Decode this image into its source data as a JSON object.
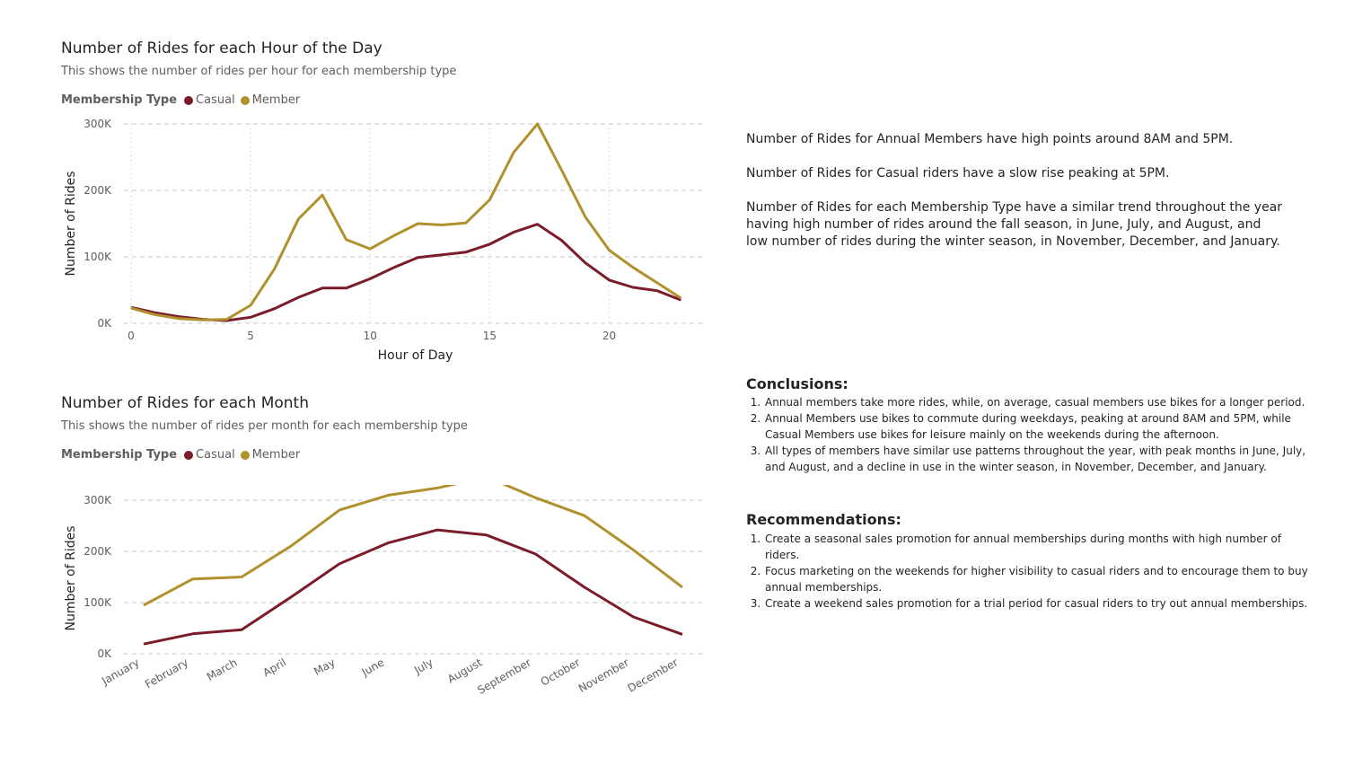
{
  "colors": {
    "casual": "#7b1c2a",
    "member": "#b0912d",
    "grid": "#c8c6c4",
    "axis_text": "#605e5c"
  },
  "hourly": {
    "title": "Number of Rides for each Hour of the Day",
    "subtitle": "This shows the number of rides per hour for each membership type",
    "legend_title": "Membership Type",
    "legend_casual": "Casual",
    "legend_member": "Member"
  },
  "monthly": {
    "title": "Number of Rides for each Month",
    "subtitle": "This shows the number of rides per month for each membership type",
    "legend_title": "Membership Type",
    "legend_casual": "Casual",
    "legend_member": "Member"
  },
  "chart_data": [
    {
      "type": "line",
      "title": "Number of Rides for each Hour of the Day",
      "xlabel": "Hour of Day",
      "ylabel": "Number of Rides",
      "x": [
        0,
        1,
        2,
        3,
        4,
        5,
        6,
        7,
        8,
        9,
        10,
        11,
        12,
        13,
        14,
        15,
        16,
        17,
        18,
        19,
        20,
        21,
        22,
        23
      ],
      "xticks": [
        0,
        5,
        10,
        15,
        20
      ],
      "xtick_labels": [
        "0",
        "5",
        "10",
        "15",
        "20"
      ],
      "xlim": [
        0,
        24
      ],
      "ylim": [
        0,
        300000
      ],
      "yticks": [
        0,
        100000,
        200000,
        300000
      ],
      "ytick_labels": [
        "0K",
        "100K",
        "200K",
        "300K"
      ],
      "grid": true,
      "series": [
        {
          "name": "Casual",
          "values": [
            24000,
            16000,
            10000,
            6000,
            4000,
            9000,
            22000,
            39000,
            53000,
            53000,
            67000,
            84000,
            99000,
            103000,
            107000,
            119000,
            137000,
            149000,
            125000,
            91000,
            65000,
            54000,
            49000,
            35000
          ]
        },
        {
          "name": "Member",
          "values": [
            23000,
            13000,
            7000,
            5000,
            6000,
            27000,
            82000,
            157000,
            193000,
            126000,
            112000,
            132000,
            150000,
            148000,
            151000,
            186000,
            257000,
            300000,
            231000,
            160000,
            110000,
            84000,
            61000,
            38000
          ]
        }
      ]
    },
    {
      "type": "line",
      "title": "Number of Rides for each Month",
      "xlabel": "",
      "ylabel": "Number of Rides",
      "categories": [
        "January",
        "February",
        "March",
        "April",
        "May",
        "June",
        "July",
        "August",
        "September",
        "October",
        "November",
        "December"
      ],
      "ylim": [
        0,
        330000
      ],
      "yticks": [
        0,
        100000,
        200000,
        300000
      ],
      "ytick_labels": [
        "0K",
        "100K",
        "200K",
        "300K"
      ],
      "grid": true,
      "series": [
        {
          "name": "Casual",
          "values": [
            19000,
            39000,
            47000,
            110000,
            176000,
            217000,
            242000,
            232000,
            195000,
            130000,
            72000,
            38000
          ]
        },
        {
          "name": "Member",
          "values": [
            95000,
            146000,
            150000,
            210000,
            281000,
            310000,
            324000,
            346000,
            305000,
            270000,
            203000,
            130000
          ]
        }
      ]
    }
  ],
  "notes": {
    "p1": "Number of Rides for Annual Members have high points around 8AM and 5PM.",
    "p2": "Number of Rides for Casual riders have a slow rise peaking at 5PM.",
    "p3": "Number of Rides for each Membership Type have a similar trend throughout the year having high number of rides around the fall season, in June, July, and August, and low number of rides during the winter season, in November, December, and January."
  },
  "conclusions": {
    "heading": "Conclusions:",
    "items": [
      "Annual members take more rides, while, on average, casual members use bikes for a longer period.",
      "Annual Members use bikes to commute during weekdays, peaking at around 8AM and 5PM, while Casual Members use bikes for leisure mainly on the weekends during the afternoon.",
      "All types of members have similar use patterns throughout the year, with peak months in June, July, and August, and a decline in use in the winter season, in November, December, and January."
    ]
  },
  "recommendations": {
    "heading": "Recommendations:",
    "items": [
      "Create a seasonal sales promotion for annual memberships during months with high number of riders.",
      "Focus marketing on the weekends for higher visibility to casual riders and to encourage them to buy annual memberships.",
      "Create a weekend sales promotion for a trial period for casual riders to try out annual memberships."
    ]
  }
}
